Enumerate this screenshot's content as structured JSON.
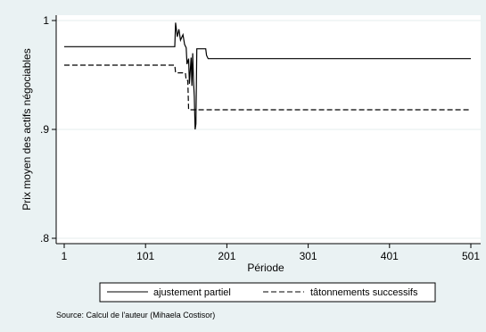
{
  "chart_data": {
    "type": "line",
    "xlabel": "Période",
    "ylabel": "Prix moyen des actifs négociables",
    "xlim": [
      1,
      501
    ],
    "ylim": [
      0.8,
      1.0
    ],
    "x_ticks": [
      1,
      101,
      201,
      301,
      401,
      501
    ],
    "x_tick_labels": [
      "1",
      "101",
      "201",
      "301",
      "401",
      "501"
    ],
    "y_ticks": [
      0.8,
      0.9,
      1.0
    ],
    "y_tick_labels": [
      ".8",
      ".9",
      "1"
    ],
    "grid": "horizontal",
    "legend_position": "bottom",
    "series": [
      {
        "name": "ajustement partiel",
        "style": "solid",
        "color": "#000000",
        "points": [
          [
            1,
            0.976
          ],
          [
            137,
            0.976
          ],
          [
            138,
            0.998
          ],
          [
            140,
            0.985
          ],
          [
            142,
            0.992
          ],
          [
            144,
            0.982
          ],
          [
            147,
            0.987
          ],
          [
            149,
            0.978
          ],
          [
            151,
            0.975
          ],
          [
            152,
            0.96
          ],
          [
            154,
            0.965
          ],
          [
            155,
            0.942
          ],
          [
            157,
            0.966
          ],
          [
            158,
            0.94
          ],
          [
            159,
            0.97
          ],
          [
            160,
            0.945
          ],
          [
            161,
            0.93
          ],
          [
            162,
            0.9
          ],
          [
            163,
            0.905
          ],
          [
            164,
            0.974
          ],
          [
            175,
            0.974
          ],
          [
            176,
            0.968
          ],
          [
            178,
            0.965
          ],
          [
            501,
            0.965
          ]
        ]
      },
      {
        "name": "tâtonnements successifs",
        "style": "dashed",
        "color": "#000000",
        "points": [
          [
            1,
            0.959
          ],
          [
            137,
            0.959
          ],
          [
            138,
            0.952
          ],
          [
            150,
            0.952
          ],
          [
            151,
            0.945
          ],
          [
            153,
            0.945
          ],
          [
            154,
            0.918
          ],
          [
            501,
            0.918
          ]
        ]
      }
    ]
  },
  "source_note": "Source: Calcul de l'auteur (Mihaela Costisor)"
}
